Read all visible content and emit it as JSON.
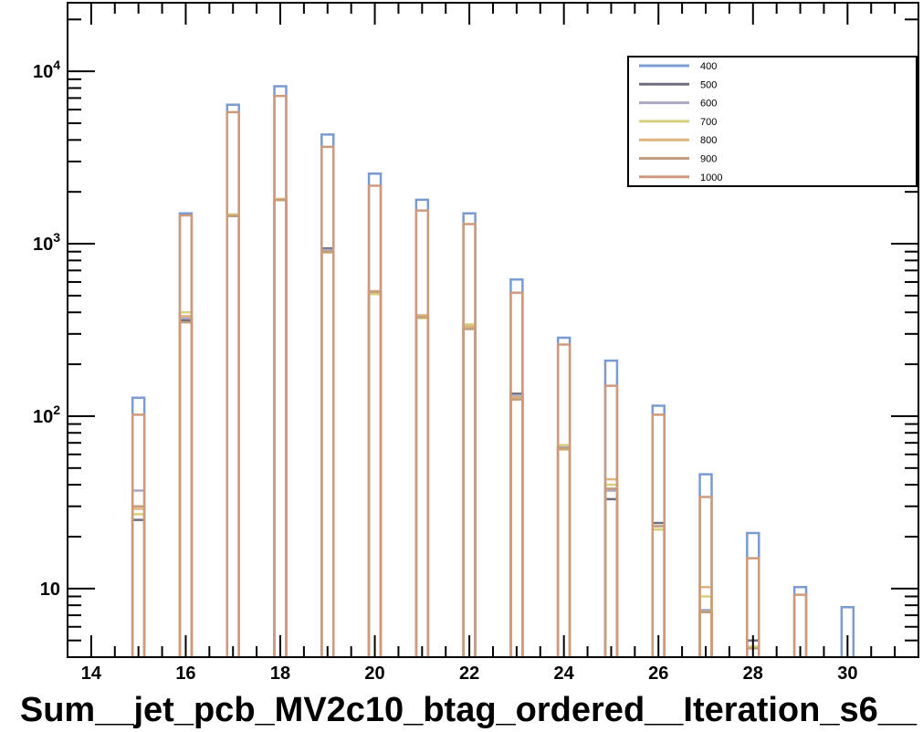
{
  "chart_data": {
    "type": "histogram",
    "title": "",
    "xlabel": "Sum__jet_pcb_MV2c10_btag_ordered__Iteration_s6__",
    "ylabel": "",
    "xlim": [
      13.5,
      31.5
    ],
    "ylim": [
      4,
      25000
    ],
    "y_scale": "log",
    "grid": false,
    "legend_position": "top-right",
    "bin_width": 0.25,
    "x_tick_labels": [
      "14",
      "16",
      "18",
      "20",
      "22",
      "24",
      "26",
      "28",
      "30"
    ],
    "y_tick_labels": [
      {
        "value": 10,
        "mantissa": "10",
        "exponent": ""
      },
      {
        "value": 100,
        "mantissa": "10",
        "exponent": "2"
      },
      {
        "value": 1000,
        "mantissa": "10",
        "exponent": "3"
      },
      {
        "value": 10000,
        "mantissa": "10",
        "exponent": "4"
      }
    ],
    "bin_centers": [
      15,
      16,
      17,
      18,
      19,
      20,
      21,
      22,
      23,
      24,
      25,
      26,
      27,
      28,
      29,
      30
    ],
    "series": [
      {
        "name": "400",
        "color": "#7b9ad1",
        "values": [
          128,
          1500,
          6400,
          8200,
          4300,
          2550,
          1800,
          1500,
          620,
          285,
          210,
          115,
          46,
          21,
          10.2,
          7.8
        ]
      },
      {
        "name": "500",
        "color": "#6e6e80",
        "values": [
          25,
          360,
          1450,
          1800,
          940,
          530,
          380,
          330,
          135,
          65,
          33,
          24,
          7.3,
          5,
          0,
          0
        ]
      },
      {
        "name": "600",
        "color": "#a9a8c0",
        "values": [
          37,
          370,
          1470,
          1800,
          920,
          520,
          375,
          325,
          130,
          66,
          37,
          22,
          7.5,
          0,
          0,
          0
        ]
      },
      {
        "name": "700",
        "color": "#d6cf7c",
        "values": [
          27,
          400,
          1480,
          1820,
          900,
          510,
          370,
          340,
          125,
          68,
          40,
          22,
          9,
          4.6,
          0,
          0
        ]
      },
      {
        "name": "800",
        "color": "#e0b37c",
        "values": [
          29,
          380,
          1460,
          1810,
          890,
          530,
          385,
          330,
          128,
          64,
          43,
          23,
          10.2,
          0,
          0,
          0
        ]
      },
      {
        "name": "900",
        "color": "#c29f7c",
        "values": [
          30,
          350,
          1450,
          1790,
          900,
          525,
          375,
          320,
          125,
          65,
          38,
          23,
          7.3,
          4.5,
          0,
          0
        ]
      },
      {
        "name": "1000",
        "color": "#cf9a7c",
        "values": [
          102,
          1460,
          5800,
          7200,
          3650,
          2170,
          1560,
          1300,
          520,
          260,
          150,
          102,
          34,
          15,
          9.2,
          0
        ]
      }
    ]
  }
}
